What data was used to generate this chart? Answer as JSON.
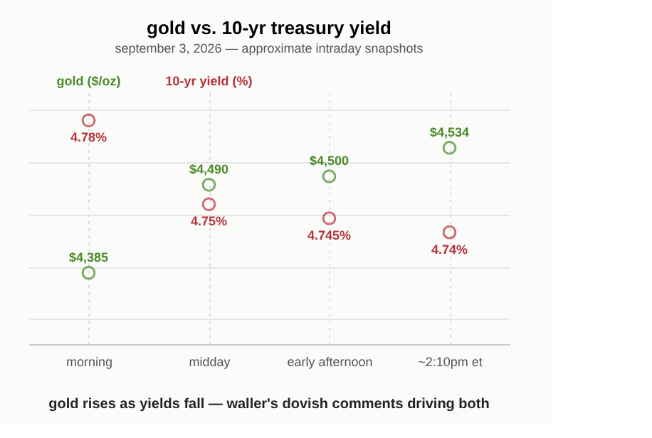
{
  "chart_data": {
    "type": "scatter",
    "title": "gold vs. 10-yr treasury yield",
    "subtitle": "september 3, 2026 — approximate intraday snapshots",
    "categories": [
      "morning",
      "midday",
      "early afternoon",
      "~2:10pm et"
    ],
    "series": [
      {
        "name": "gold ($/oz)",
        "color": "#4a8a2a",
        "values": [
          4385,
          4490,
          4500,
          4534
        ],
        "value_labels": [
          "$4,385",
          "$4,490",
          "$4,500",
          "$4,534"
        ]
      },
      {
        "name": "10-yr yield (%)",
        "color": "#b5323a",
        "axis": "y2",
        "values": [
          4.78,
          4.75,
          4.745,
          4.74
        ],
        "value_labels": [
          "4.78%",
          "4.75%",
          "4.745%",
          "4.74%"
        ]
      }
    ],
    "ylim": [
      4300,
      4600
    ],
    "yticks": [
      {
        "value": 4330,
        "label": null
      },
      {
        "value": 4392,
        "label": null
      },
      {
        "value": 4455,
        "label": null
      },
      {
        "value": 4517,
        "label": null
      },
      {
        "value": 4580,
        "label": null
      }
    ],
    "y2lim": [
      4.7,
      4.79
    ],
    "tick_labels": "x",
    "grid": true,
    "legend": "top left",
    "marker": "circle",
    "annotations": [
      "gold rises as yields fall — waller's dovish comments driving both"
    ]
  }
}
